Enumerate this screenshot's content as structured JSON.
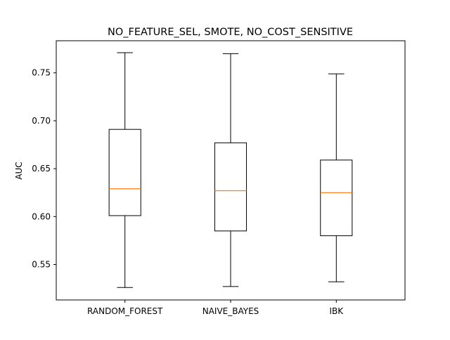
{
  "chart_data": {
    "type": "box",
    "title": "NO_FEATURE_SEL, SMOTE, NO_COST_SENSITIVE",
    "xlabel": "",
    "ylabel": "AUC",
    "ylim": [
      0.513,
      0.7835
    ],
    "yticks": [
      0.55,
      0.6,
      0.65,
      0.7,
      0.75
    ],
    "ytick_labels": [
      "0.55",
      "0.60",
      "0.65",
      "0.70",
      "0.75"
    ],
    "grid": false,
    "categories": [
      "RANDOM_FOREST",
      "NAIVE_BAYES",
      "IBK"
    ],
    "boxes": [
      {
        "whisker_low": 0.526,
        "q1": 0.601,
        "median": 0.629,
        "q3": 0.691,
        "whisker_high": 0.771
      },
      {
        "whisker_low": 0.527,
        "q1": 0.585,
        "median": 0.627,
        "q3": 0.677,
        "whisker_high": 0.77
      },
      {
        "whisker_low": 0.532,
        "q1": 0.58,
        "median": 0.625,
        "q3": 0.659,
        "whisker_high": 0.749
      }
    ],
    "colors": {
      "box": "#000000",
      "median": "#ff7f0e",
      "frame": "#000000"
    }
  }
}
